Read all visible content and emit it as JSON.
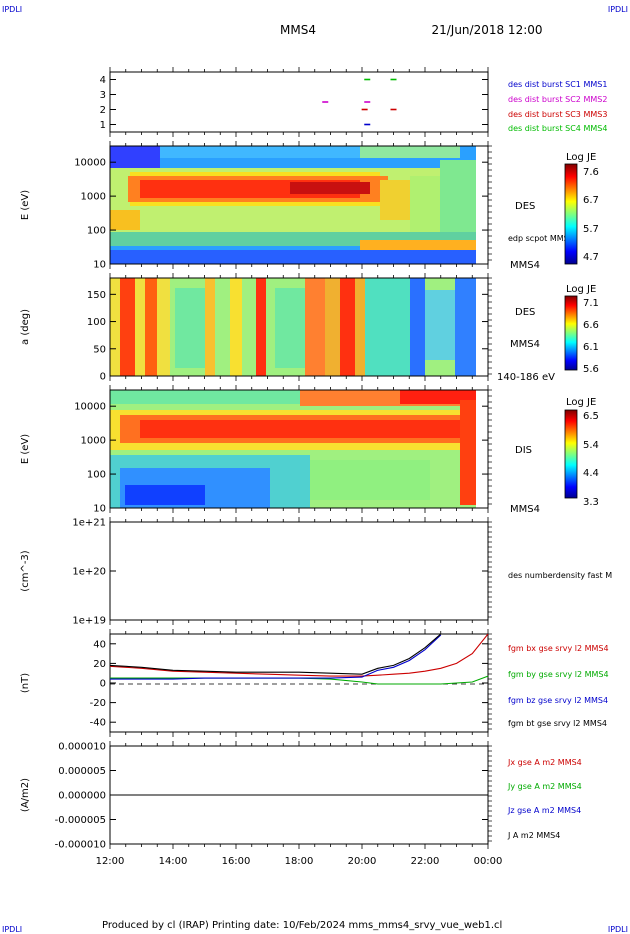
{
  "header": {
    "corner_tl": "IPDLI",
    "corner_tr": "IPDLI",
    "corner_bl": "IPDLI",
    "corner_br": "IPDLI",
    "spacecraft": "MMS4",
    "datetime": "21/Jun/2018 12:00"
  },
  "footer": {
    "credit": "Produced by cl (IRAP)   Printing date: 10/Feb/2024   mms_mms4_srvy_vue_web1.cl"
  },
  "colors": {
    "mms1": "#0000cc",
    "mms2": "#cc00cc",
    "mms3": "#cc0000",
    "mms4": "#00bb00",
    "bx": "#cc0000",
    "by": "#00aa00",
    "bz": "#0000cc",
    "bt": "#000000"
  },
  "chart_data": [
    {
      "type": "scatter",
      "title": "",
      "ylim": [
        0.5,
        4.5
      ],
      "yticks": [
        "1",
        "2",
        "3",
        "4"
      ],
      "legend": [
        {
          "label": "des dist burst SC1 MMS1",
          "color": "#0000cc"
        },
        {
          "label": "des dist burst SC2 MMS2",
          "color": "#cc00cc"
        },
        {
          "label": "des dist burst SC3 MMS3",
          "color": "#cc0000"
        },
        {
          "label": "des dist burst SC4 MMS4",
          "color": "#00bb00"
        }
      ],
      "series": [
        {
          "name": "des dist burst SC1 MMS1",
          "x": [
            "20:10"
          ],
          "y": [
            1
          ]
        },
        {
          "name": "des dist burst SC2 MMS2",
          "x": [
            "18:50",
            "20:10"
          ],
          "y": [
            2.5,
            2.5
          ]
        },
        {
          "name": "des dist burst SC3 MMS3",
          "x": [
            "20:05",
            "21:00"
          ],
          "y": [
            2,
            2
          ]
        },
        {
          "name": "des dist burst SC4 MMS4",
          "x": [
            "20:10",
            "21:00"
          ],
          "y": [
            4,
            4
          ]
        }
      ]
    },
    {
      "type": "heatmap",
      "ylabel": "E (eV)",
      "yscale": "log",
      "ylim": [
        10,
        30000
      ],
      "yticks": [
        "10",
        "100",
        "1000",
        "10000"
      ],
      "labels_right": [
        "DES",
        "edp scpot MMS4",
        "MMS4"
      ],
      "colorbar": {
        "label": "Log JE",
        "ticks": [
          "7.6",
          "6.7",
          "5.7",
          "4.7"
        ],
        "range": [
          4.7,
          7.6
        ]
      }
    },
    {
      "type": "heatmap",
      "ylabel": "a (deg)",
      "ylim": [
        0,
        180
      ],
      "yticks": [
        "0",
        "50",
        "100",
        "150"
      ],
      "labels_right": [
        "DES",
        "MMS4",
        "140-186 eV"
      ],
      "colorbar": {
        "label": "Log JE",
        "ticks": [
          "7.1",
          "6.6",
          "6.1",
          "5.6"
        ],
        "range": [
          5.6,
          7.1
        ]
      }
    },
    {
      "type": "heatmap",
      "ylabel": "E (eV)",
      "yscale": "log",
      "ylim": [
        10,
        30000
      ],
      "yticks": [
        "10",
        "100",
        "1000",
        "10000"
      ],
      "labels_right": [
        "DIS",
        "MMS4"
      ],
      "colorbar": {
        "label": "Log JE",
        "ticks": [
          "6.5",
          "5.4",
          "4.4",
          "3.3"
        ],
        "range": [
          3.3,
          6.5
        ]
      }
    },
    {
      "type": "line",
      "ylabel": "(cm^-3)",
      "yscale": "log",
      "ylim": [
        1e+19,
        1e+21
      ],
      "yticks": [
        "1e+21",
        "1e+20",
        "1e+19"
      ],
      "legend": [
        {
          "label": "des numberdensity fast M",
          "color": "#000000"
        }
      ],
      "series": []
    },
    {
      "type": "line",
      "ylabel": "(nT)",
      "ylim": [
        -50,
        50
      ],
      "yticks": [
        "40",
        "20",
        "0",
        "-20",
        "-40"
      ],
      "legend": [
        {
          "label": "fgm bx gse srvy l2 MMS4",
          "color": "#cc0000"
        },
        {
          "label": "fgm by gse srvy l2 MMS4",
          "color": "#00aa00"
        },
        {
          "label": "fgm bz gse srvy l2 MMS4",
          "color": "#0000cc"
        },
        {
          "label": "fgm bt gse srvy l2 MMS4",
          "color": "#000000"
        }
      ],
      "x": [
        12,
        13,
        14,
        15,
        16,
        17,
        18,
        19,
        20,
        20.5,
        21,
        21.5,
        22,
        22.5,
        23,
        23.5,
        24
      ],
      "series": [
        {
          "name": "fgm bx gse srvy l2 MMS4",
          "values": [
            17,
            15,
            12,
            11,
            10,
            9,
            8,
            7,
            7,
            8,
            9,
            10,
            12,
            15,
            20,
            30,
            50
          ]
        },
        {
          "name": "fgm by gse srvy l2 MMS4",
          "values": [
            5,
            5,
            5,
            5,
            5,
            5,
            5,
            4,
            1,
            -1,
            -1,
            -1,
            -1,
            -1,
            0,
            1,
            7
          ]
        },
        {
          "name": "fgm bz gse srvy l2 MMS4",
          "values": [
            4,
            4,
            4,
            5,
            5,
            5,
            5,
            5,
            6,
            13,
            16,
            23,
            34,
            49,
            null,
            null,
            null
          ]
        },
        {
          "name": "fgm bt gse srvy l2 MMS4",
          "values": [
            18,
            16,
            13,
            12,
            11,
            11,
            11,
            10,
            9,
            15,
            18,
            25,
            36,
            51,
            null,
            null,
            null
          ]
        }
      ]
    },
    {
      "type": "line",
      "ylabel": "(A/m2)",
      "ylim": [
        -1e-05,
        1e-05
      ],
      "yticks": [
        "0.000010",
        "0.000005",
        "0.000000",
        "-0.000005",
        "-0.000010"
      ],
      "xticks": [
        "12:00",
        "14:00",
        "16:00",
        "18:00",
        "20:00",
        "22:00",
        "00:00"
      ],
      "legend": [
        {
          "label": "Jx gse A m2 MMS4",
          "color": "#cc0000"
        },
        {
          "label": "Jy gse A m2 MMS4",
          "color": "#00aa00"
        },
        {
          "label": "Jz gse A m2 MMS4",
          "color": "#0000cc"
        },
        {
          "label": "J A m2 MMS4",
          "color": "#000000"
        }
      ],
      "x": [
        12,
        14,
        16,
        18,
        20,
        22,
        24
      ],
      "series": [
        {
          "name": "J A m2 MMS4",
          "values": [
            0,
            0,
            0,
            0,
            0,
            0,
            0
          ]
        }
      ]
    }
  ]
}
